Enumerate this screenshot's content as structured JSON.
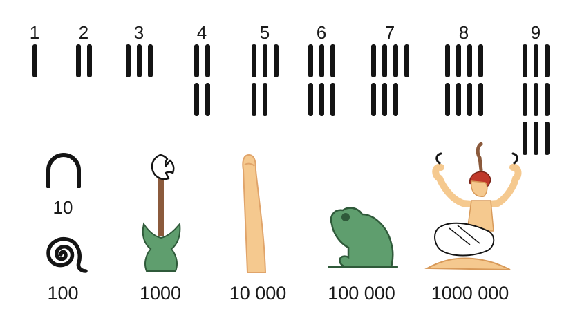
{
  "units": [
    {
      "label": "1",
      "value": 1
    },
    {
      "label": "2",
      "value": 2
    },
    {
      "label": "3",
      "value": 3
    },
    {
      "label": "4",
      "value": 4
    },
    {
      "label": "5",
      "value": 5
    },
    {
      "label": "6",
      "value": 6
    },
    {
      "label": "7",
      "value": 7
    },
    {
      "label": "8",
      "value": 8
    },
    {
      "label": "9",
      "value": 9
    }
  ],
  "powers": [
    {
      "label": "10",
      "glyph": "heel-bone-icon"
    },
    {
      "label": "100",
      "glyph": "coil-of-rope-icon"
    },
    {
      "label": "1000",
      "glyph": "lotus-flower-icon"
    },
    {
      "label": "10 000",
      "glyph": "finger-icon"
    },
    {
      "label": "100 000",
      "glyph": "frog-icon"
    },
    {
      "label": "1000 000",
      "glyph": "heh-god-icon"
    }
  ],
  "colors": {
    "ink": "#141414",
    "green": "#5f9e6e",
    "skin": "#f5c98f",
    "brown": "#8b5a3c",
    "hair": "#c0392b"
  }
}
